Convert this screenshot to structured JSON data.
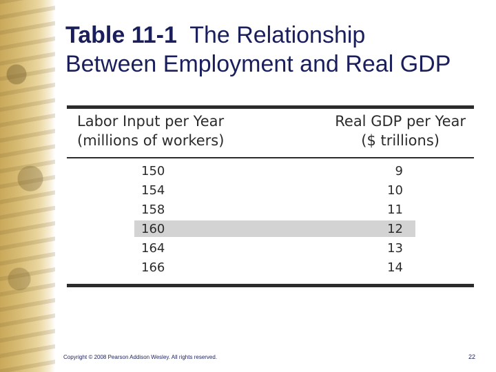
{
  "slide": {
    "title_number": "Table 11-1",
    "title_line1_rest": "The Relationship",
    "title_line2": "Between Employment and Real GDP"
  },
  "table": {
    "col_labor_line1": "Labor Input per Year",
    "col_labor_line2": "(millions of workers)",
    "col_gdp_line1": "Real GDP per Year",
    "col_gdp_line2": "($ trillions)",
    "rows": [
      {
        "labor": "150",
        "gdp": "9"
      },
      {
        "labor": "154",
        "gdp": "10"
      },
      {
        "labor": "158",
        "gdp": "11"
      },
      {
        "labor": "160",
        "gdp": "12"
      },
      {
        "labor": "164",
        "gdp": "13"
      },
      {
        "labor": "166",
        "gdp": "14"
      }
    ],
    "highlight_color": "#d3d3d3"
  },
  "footer": {
    "copyright": "Copyright © 2008 Pearson Addison Wesley. All rights reserved.",
    "page_number": "22"
  },
  "colors": {
    "title": "#1a1f5c",
    "rules": "#2b2b2b"
  }
}
